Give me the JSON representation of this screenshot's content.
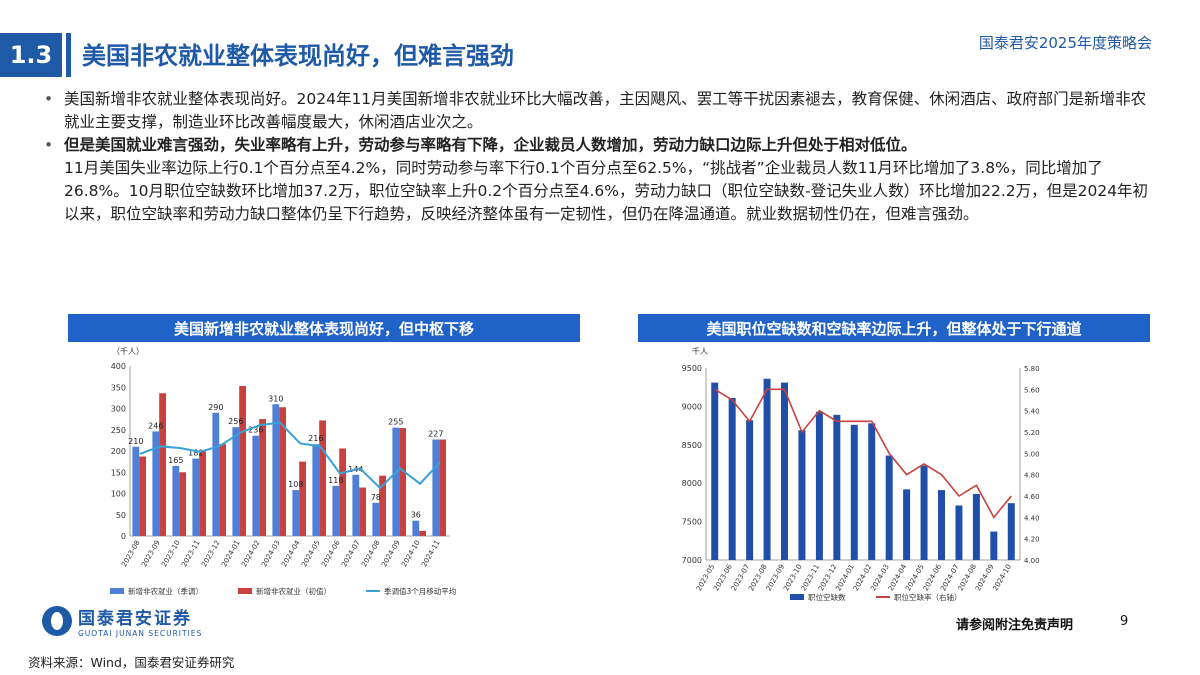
{
  "header": {
    "section_number": "1.3",
    "title": "美国非农就业整体表现尚好，但难言强劲",
    "conference": "国泰君安2025年度策略会"
  },
  "bullets": [
    {
      "bold_text": "",
      "text": "美国新增非农就业整体表现尚好。2024年11月美国新增非农就业环比大幅改善，主因飓风、罢工等干扰因素褪去，教育保健、休闲酒店、政府部门是新增非农就业主要支撑，制造业环比改善幅度最大，休闲酒店业次之。"
    },
    {
      "bold_text": "但是美国就业难言强劲，失业率略有上升，劳动参与率略有下降，企业裁员人数增加，劳动力缺口边际上升但处于相对低位。",
      "text": "11月美国失业率边际上行0.1个百分点至4.2%，同时劳动参与率下行0.1个百分点至62.5%，“挑战者”企业裁员人数11月环比增加了3.8%，同比增加了26.8%。10月职位空缺数环比增加37.2万，职位空缺率上升0.2个百分点至4.6%，劳动力缺口（职位空缺数-登记失业人数）环比增加22.2万，但是2024年初以来，职位空缺率和劳动力缺口整体仍呈下行趋势，反映经济整体虽有一定韧性，但仍在降温通道。就业数据韧性仍在，但难言强劲。"
    }
  ],
  "chart_data": [
    {
      "type": "bar",
      "title": "美国新增非农就业整体表现尚好，但中枢下移",
      "ylabel": "（千人）",
      "ylim": [
        0,
        400
      ],
      "yticks": [
        0,
        50,
        100,
        150,
        200,
        250,
        300,
        350,
        400
      ],
      "categories": [
        "2023-08",
        "2023-09",
        "2023-10",
        "2023-11",
        "2023-12",
        "2024-01",
        "2024-02",
        "2024-03",
        "2024-04",
        "2024-05",
        "2024-06",
        "2024-07",
        "2024-08",
        "2024-09",
        "2024-10",
        "2024-11"
      ],
      "series": [
        {
          "name": "新增非农就业（季调）",
          "color": "#4f7fd6",
          "kind": "bar",
          "values": [
            210,
            246,
            165,
            182,
            290,
            256,
            236,
            310,
            108,
            216,
            118,
            144,
            78,
            255,
            36,
            227
          ]
        },
        {
          "name": "新增非农就业（初值）",
          "color": "#c8413e",
          "kind": "bar",
          "values": [
            187,
            336,
            150,
            199,
            216,
            353,
            275,
            303,
            175,
            272,
            206,
            114,
            142,
            254,
            12,
            227
          ]
        },
        {
          "name": "季调值3个月移动平均",
          "color": "#3aa0d8",
          "kind": "line",
          "values": [
            193,
            211,
            207,
            198,
            212,
            243,
            261,
            267,
            218,
            211,
            147,
            159,
            113,
            159,
            123,
            173
          ]
        }
      ],
      "data_labels": [
        210,
        246,
        165,
        182,
        290,
        256,
        236,
        310,
        108,
        216,
        118,
        144,
        78,
        255,
        36,
        227
      ]
    },
    {
      "type": "bar",
      "title": "美国职位空缺数和空缺率边际上升，但整体处于下行通道",
      "ylabel": "千人",
      "ylim": [
        7000,
        9500
      ],
      "yticks": [
        7000,
        7500,
        8000,
        8500,
        9000,
        9500
      ],
      "y2lim": [
        4.0,
        5.8
      ],
      "y2ticks": [
        "4.00",
        "4.20",
        "4.40",
        "4.60",
        "4.80",
        "5.00",
        "5.20",
        "5.40",
        "5.60",
        "5.80"
      ],
      "categories": [
        "2023-05",
        "2023-06",
        "2023-07",
        "2023-08",
        "2023-09",
        "2023-10",
        "2023-11",
        "2023-12",
        "2024-01",
        "2024-02",
        "2024-03",
        "2024-04",
        "2024-05",
        "2024-06",
        "2024-07",
        "2024-08",
        "2024-09",
        "2024-10"
      ],
      "series": [
        {
          "name": "职位空缺数",
          "color": "#1f4fa8",
          "kind": "bar",
          "values": [
            9310,
            9110,
            8820,
            9360,
            9310,
            8690,
            8930,
            8890,
            8760,
            8780,
            8360,
            7920,
            8230,
            7910,
            7710,
            7860,
            7370,
            7740
          ]
        },
        {
          "name": "职位空缺率（右轴）",
          "color": "#c8413e",
          "kind": "line",
          "axis": "right",
          "values": [
            5.6,
            5.5,
            5.3,
            5.6,
            5.6,
            5.2,
            5.4,
            5.3,
            5.3,
            5.3,
            5.0,
            4.8,
            4.9,
            4.8,
            4.6,
            4.7,
            4.4,
            4.6
          ]
        }
      ]
    }
  ],
  "footer": {
    "logo_cn": "国泰君安证券",
    "logo_en": "GUOTAI JUNAN SECURITIES",
    "disclaimer": "请参阅附注免责声明",
    "page": "9",
    "source": "资料来源：Wind，国泰君安证券研究"
  },
  "colors": {
    "brand": "#1f5aa6",
    "header_blue": "#1f62c8"
  }
}
